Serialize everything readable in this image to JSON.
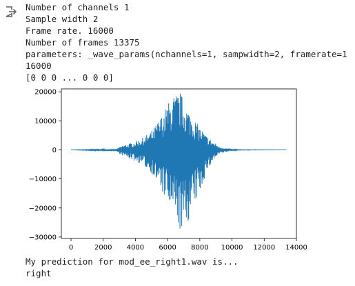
{
  "output": {
    "icon": "output-redirect-icon",
    "lines": [
      "Number of channels 1",
      "Sample width 2",
      "Frame rate. 16000",
      "Number of frames 13375",
      "parameters: _wave_params(nchannels=1, sampwidth=2, framerate=1",
      "16000",
      "[0 0 0 ... 0 0 0]"
    ]
  },
  "chart_data": {
    "type": "line",
    "title": "",
    "xlabel": "",
    "ylabel": "",
    "xlim": [
      -600,
      14000
    ],
    "ylim": [
      -30500,
      21000
    ],
    "x_ticks": [
      0,
      2000,
      4000,
      6000,
      8000,
      10000,
      12000,
      14000
    ],
    "y_ticks": [
      -30000,
      -20000,
      -10000,
      0,
      10000,
      20000
    ],
    "x_tick_labels": [
      "0",
      "2000",
      "4000",
      "6000",
      "8000",
      "10000",
      "12000",
      "14000"
    ],
    "y_tick_labels": [
      "−30000",
      "−20000",
      "−10000",
      "0",
      "10000",
      "20000"
    ],
    "grid": false,
    "line_color": "#1f77b4",
    "series": [
      {
        "x_start": 0,
        "x_end": 13375,
        "envelope_x": [
          0,
          2800,
          3200,
          3800,
          4400,
          5000,
          5600,
          6000,
          6400,
          6800,
          7000,
          7200,
          7600,
          8000,
          8400,
          8800,
          9200,
          9600,
          10000,
          10400,
          13375
        ],
        "envelope_pos": [
          0,
          300,
          1500,
          2500,
          4000,
          6500,
          11500,
          16000,
          19000,
          20000,
          17000,
          15000,
          11000,
          8000,
          5000,
          3000,
          1200,
          600,
          300,
          80,
          0
        ],
        "envelope_neg": [
          0,
          -500,
          -2000,
          -3500,
          -5000,
          -8000,
          -14000,
          -19000,
          -23000,
          -28500,
          -29000,
          -26000,
          -20000,
          -15000,
          -8000,
          -4000,
          -1500,
          -800,
          -300,
          -100,
          0
        ]
      }
    ]
  },
  "tail": {
    "lines": [
      "My prediction for mod_ee_right1.wav is...",
      "right"
    ]
  }
}
